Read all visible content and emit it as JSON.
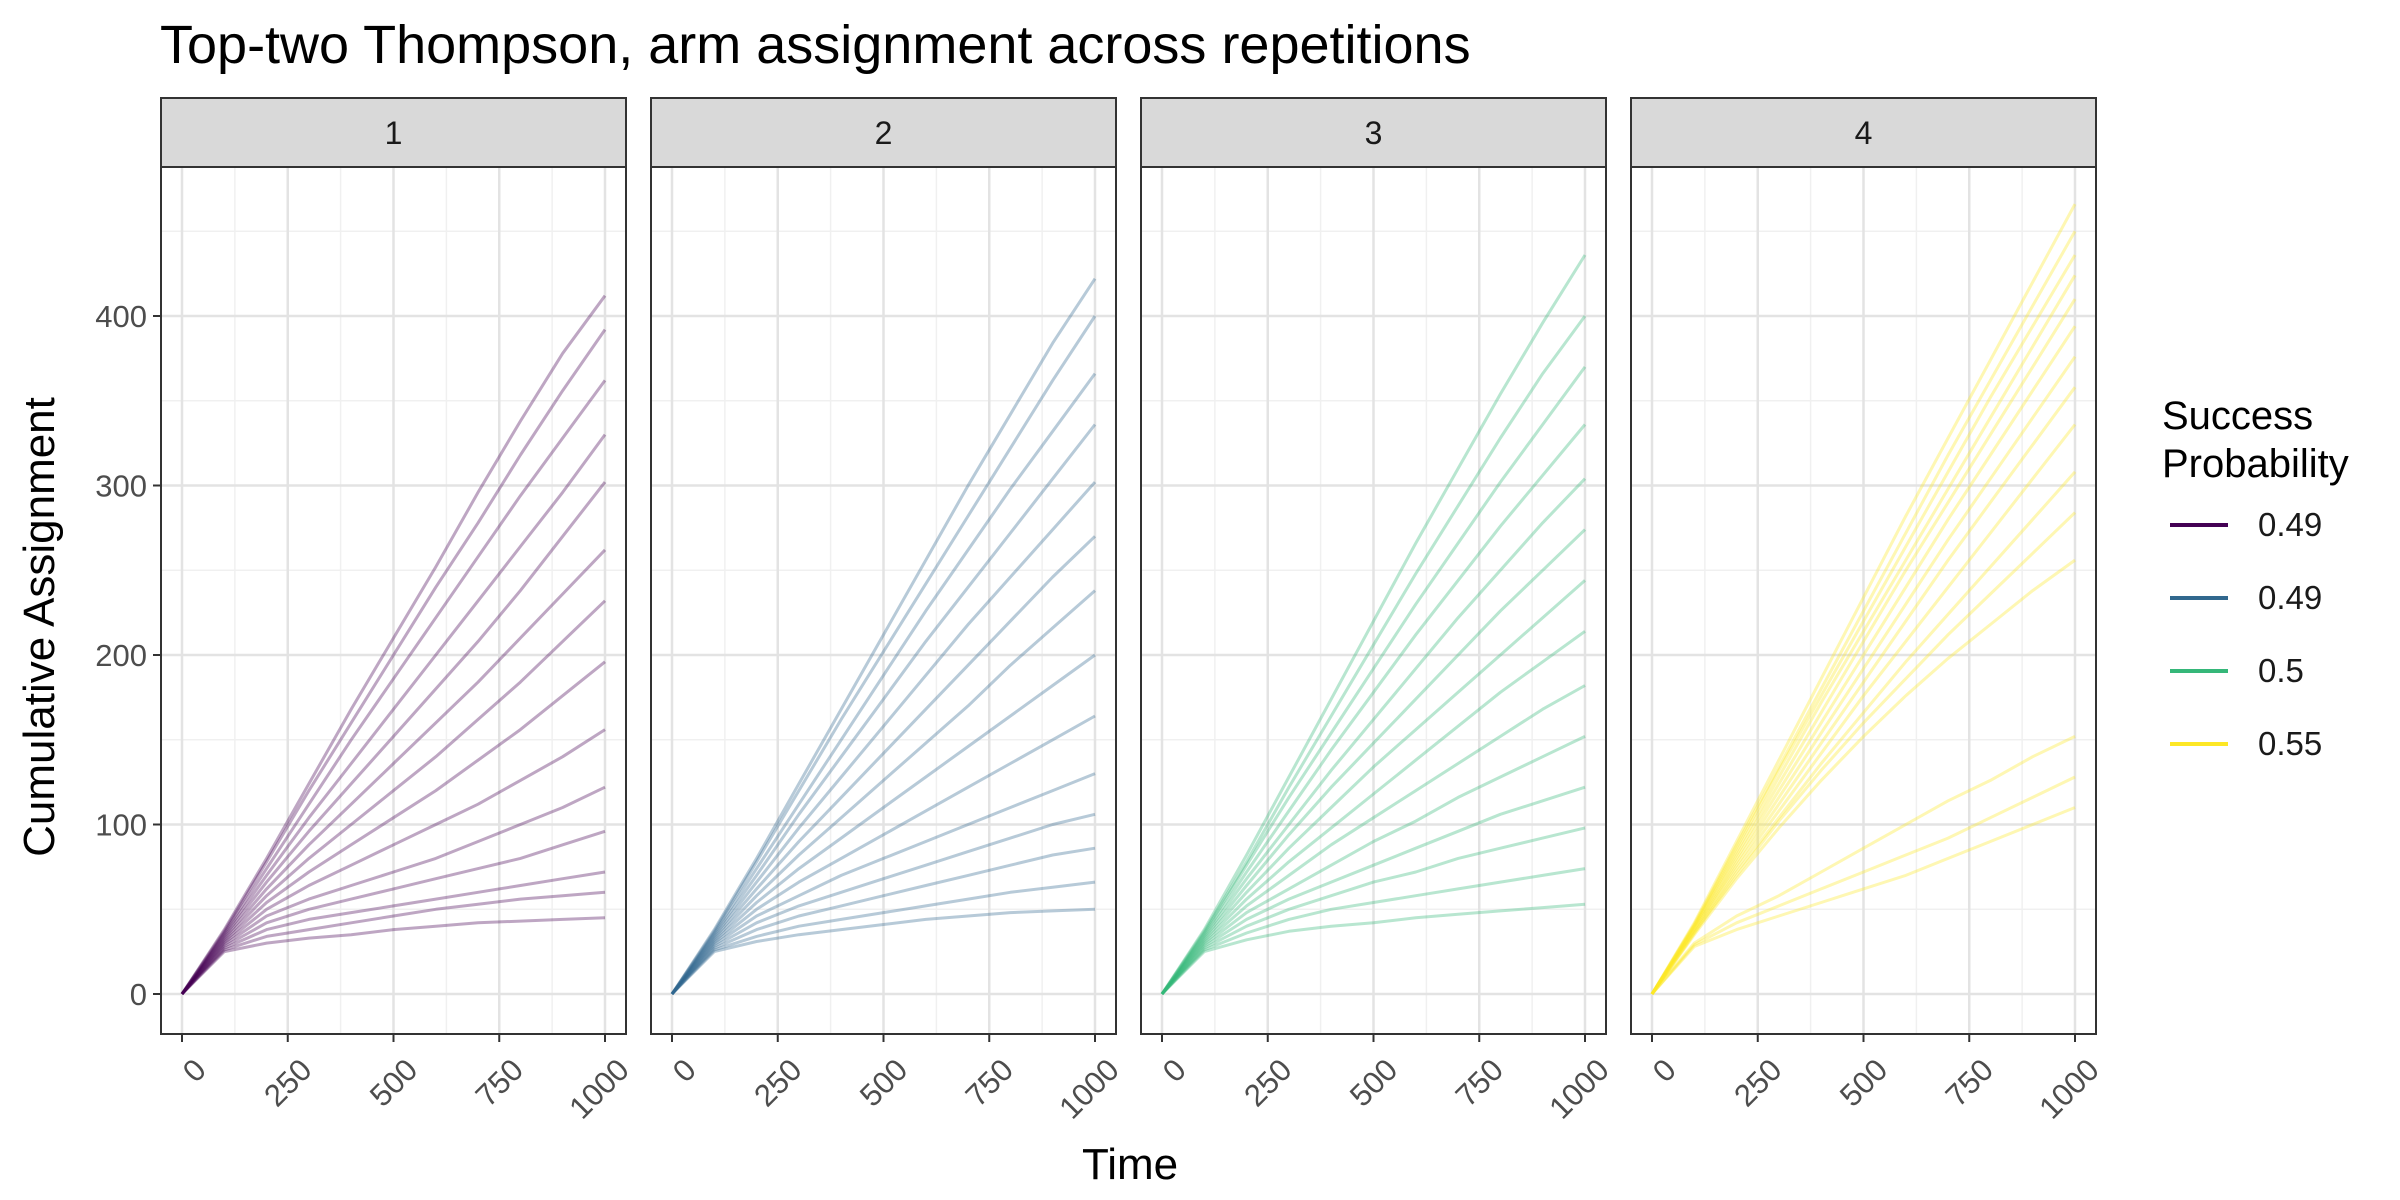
{
  "chart_data": {
    "type": "line",
    "title": "Top-two Thompson, arm assignment across repetitions",
    "xlabel": "Time",
    "ylabel": "Cumulative Assignment",
    "xlim": [
      0,
      1000
    ],
    "ylim": [
      0,
      450
    ],
    "x_ticks": [
      0,
      250,
      500,
      750,
      1000
    ],
    "x_tick_labels": [
      "0",
      "250",
      "500",
      "750",
      "1000"
    ],
    "y_ticks": [
      0,
      100,
      200,
      300,
      400
    ],
    "y_tick_labels": [
      "0",
      "100",
      "200",
      "300",
      "400"
    ],
    "grid": true,
    "facet_labels": [
      "1",
      "2",
      "3",
      "4"
    ],
    "legend": {
      "title_lines": [
        "Success",
        "Probability"
      ],
      "placement": "right",
      "entries": [
        {
          "label": "0.49",
          "color": "#440154"
        },
        {
          "label": "0.49",
          "color": "#31688E"
        },
        {
          "label": "0.5",
          "color": "#35B779"
        },
        {
          "label": "0.55",
          "color": "#FDE725"
        }
      ]
    },
    "x": [
      0,
      100,
      200,
      300,
      400,
      500,
      600,
      700,
      800,
      900,
      1000
    ],
    "panels": [
      {
        "facet": "1",
        "success_probability": "0.49",
        "color": "#440154",
        "series": [
          {
            "values": [
              0,
              38,
              80,
              124,
              168,
              210,
              252,
              296,
              338,
              378,
              412
            ]
          },
          {
            "values": [
              0,
              37,
              78,
              120,
              160,
              200,
              240,
              278,
              318,
              356,
              392
            ]
          },
          {
            "values": [
              0,
              36,
              74,
              112,
              150,
              186,
              222,
              258,
              294,
              328,
              362
            ]
          },
          {
            "values": [
              0,
              35,
              70,
              104,
              136,
              168,
              200,
              232,
              264,
              296,
              330
            ]
          },
          {
            "values": [
              0,
              34,
              66,
              96,
              124,
              152,
              180,
              208,
              238,
              270,
              302
            ]
          },
          {
            "values": [
              0,
              33,
              62,
              88,
              112,
              136,
              160,
              184,
              210,
              236,
              262
            ]
          },
          {
            "values": [
              0,
              32,
              58,
              80,
              100,
              120,
              140,
              162,
              184,
              208,
              232
            ]
          },
          {
            "values": [
              0,
              31,
              54,
              72,
              88,
              104,
              120,
              138,
              156,
              176,
              196
            ]
          },
          {
            "values": [
              0,
              30,
              50,
              64,
              76,
              88,
              100,
              112,
              126,
              140,
              156
            ]
          },
          {
            "values": [
              0,
              29,
              46,
              56,
              64,
              72,
              80,
              90,
              100,
              110,
              122
            ]
          },
          {
            "values": [
              0,
              28,
              42,
              50,
              56,
              62,
              68,
              74,
              80,
              88,
              96
            ]
          },
          {
            "values": [
              0,
              27,
              38,
              44,
              48,
              52,
              56,
              60,
              64,
              68,
              72
            ]
          },
          {
            "values": [
              0,
              26,
              34,
              38,
              42,
              46,
              50,
              53,
              56,
              58,
              60
            ]
          },
          {
            "values": [
              0,
              25,
              30,
              33,
              35,
              38,
              40,
              42,
              43,
              44,
              45
            ]
          }
        ]
      },
      {
        "facet": "2",
        "success_probability": "0.49",
        "color": "#31688E",
        "series": [
          {
            "values": [
              0,
              38,
              80,
              124,
              168,
              212,
              256,
              300,
              342,
              384,
              422
            ]
          },
          {
            "values": [
              0,
              37,
              78,
              120,
              162,
              202,
              242,
              282,
              322,
              362,
              400
            ]
          },
          {
            "values": [
              0,
              36,
              74,
              112,
              150,
              188,
              226,
              262,
              298,
              332,
              366
            ]
          },
          {
            "values": [
              0,
              35,
              70,
              106,
              140,
              174,
              208,
              240,
              272,
              304,
              336
            ]
          },
          {
            "values": [
              0,
              34,
              66,
              98,
              128,
              158,
              188,
              218,
              246,
              274,
              302
            ]
          },
          {
            "values": [
              0,
              33,
              62,
              90,
              116,
              142,
              168,
              194,
              220,
              246,
              270
            ]
          },
          {
            "values": [
              0,
              32,
              58,
              82,
              104,
              126,
              148,
              170,
              194,
              216,
              238
            ]
          },
          {
            "values": [
              0,
              31,
              54,
              74,
              92,
              110,
              128,
              146,
              164,
              182,
              200
            ]
          },
          {
            "values": [
              0,
              30,
              50,
              66,
              80,
              94,
              108,
              122,
              136,
              150,
              164
            ]
          },
          {
            "values": [
              0,
              29,
              46,
              58,
              70,
              80,
              90,
              100,
              110,
              120,
              130
            ]
          },
          {
            "values": [
              0,
              28,
              42,
              52,
              60,
              68,
              76,
              84,
              92,
              100,
              106
            ]
          },
          {
            "values": [
              0,
              27,
              38,
              46,
              52,
              58,
              64,
              70,
              76,
              82,
              86
            ]
          },
          {
            "values": [
              0,
              26,
              34,
              40,
              44,
              48,
              52,
              56,
              60,
              63,
              66
            ]
          },
          {
            "values": [
              0,
              25,
              31,
              35,
              38,
              41,
              44,
              46,
              48,
              49,
              50
            ]
          }
        ]
      },
      {
        "facet": "3",
        "success_probability": "0.5",
        "color": "#35B779",
        "series": [
          {
            "values": [
              0,
              38,
              82,
              128,
              174,
              220,
              266,
              310,
              354,
              396,
              436
            ]
          },
          {
            "values": [
              0,
              37,
              78,
              122,
              164,
              206,
              248,
              288,
              328,
              366,
              400
            ]
          },
          {
            "values": [
              0,
              36,
              76,
              116,
              154,
              192,
              230,
              266,
              302,
              336,
              370
            ]
          },
          {
            "values": [
              0,
              35,
              72,
              108,
              144,
              178,
              212,
              244,
              276,
              306,
              336
            ]
          },
          {
            "values": [
              0,
              34,
              68,
              100,
              132,
              162,
              192,
              222,
              250,
              278,
              304
            ]
          },
          {
            "values": [
              0,
              33,
              64,
              94,
              122,
              148,
              174,
              200,
              226,
              250,
              274
            ]
          },
          {
            "values": [
              0,
              32,
              60,
              86,
              110,
              134,
              156,
              178,
              200,
              222,
              244
            ]
          },
          {
            "values": [
              0,
              31,
              56,
              78,
              98,
              118,
              138,
              158,
              178,
              196,
              214
            ]
          },
          {
            "values": [
              0,
              30,
              52,
              70,
              88,
              104,
              120,
              136,
              152,
              168,
              182
            ]
          },
          {
            "values": [
              0,
              29,
              48,
              62,
              76,
              90,
              102,
              116,
              128,
              140,
              152
            ]
          },
          {
            "values": [
              0,
              28,
              44,
              56,
              66,
              76,
              86,
              96,
              106,
              114,
              122
            ]
          },
          {
            "values": [
              0,
              27,
              40,
              50,
              58,
              66,
              72,
              80,
              86,
              92,
              98
            ]
          },
          {
            "values": [
              0,
              26,
              36,
              44,
              50,
              54,
              58,
              62,
              66,
              70,
              74
            ]
          },
          {
            "values": [
              0,
              25,
              32,
              37,
              40,
              42,
              45,
              47,
              49,
              51,
              53
            ]
          }
        ]
      },
      {
        "facet": "4",
        "success_probability": "0.55",
        "color": "#FDE725",
        "series": [
          {
            "values": [
              0,
              42,
              90,
              138,
              186,
              234,
              282,
              328,
              374,
              420,
              466
            ]
          },
          {
            "values": [
              0,
              41,
              88,
              134,
              180,
              226,
              272,
              318,
              362,
              406,
              450
            ]
          },
          {
            "values": [
              0,
              41,
              86,
              132,
              176,
              220,
              264,
              308,
              352,
              394,
              436
            ]
          },
          {
            "values": [
              0,
              40,
              84,
              128,
              172,
              214,
              256,
              298,
              340,
              382,
              424
            ]
          },
          {
            "values": [
              0,
              40,
              82,
              124,
              166,
              208,
              250,
              290,
              330,
              370,
              410
            ]
          },
          {
            "values": [
              0,
              39,
              80,
              120,
              160,
              200,
              240,
              280,
              318,
              356,
              394
            ]
          },
          {
            "values": [
              0,
              38,
              78,
              116,
              154,
              192,
              230,
              268,
              304,
              340,
              376
            ]
          },
          {
            "values": [
              0,
              38,
              76,
              112,
              148,
              184,
              220,
              256,
              290,
              324,
              358
            ]
          },
          {
            "values": [
              0,
              37,
              74,
              108,
              142,
              176,
              208,
              240,
              272,
              304,
              336
            ]
          },
          {
            "values": [
              0,
              36,
              72,
              104,
              136,
              166,
              196,
              224,
              252,
              280,
              308
            ]
          },
          {
            "values": [
              0,
              36,
              70,
              102,
              132,
              160,
              186,
              212,
              236,
              260,
              284
            ]
          },
          {
            "values": [
              0,
              35,
              68,
              98,
              126,
              152,
              176,
              198,
              218,
              238,
              256
            ]
          },
          {
            "values": [
              0,
              30,
              46,
              58,
              72,
              86,
              100,
              114,
              126,
              140,
              152
            ]
          },
          {
            "values": [
              0,
              29,
              42,
              52,
              62,
              72,
              82,
              92,
              104,
              116,
              128
            ]
          },
          {
            "values": [
              0,
              28,
              38,
              46,
              54,
              62,
              70,
              80,
              90,
              100,
              110
            ]
          }
        ]
      }
    ]
  }
}
